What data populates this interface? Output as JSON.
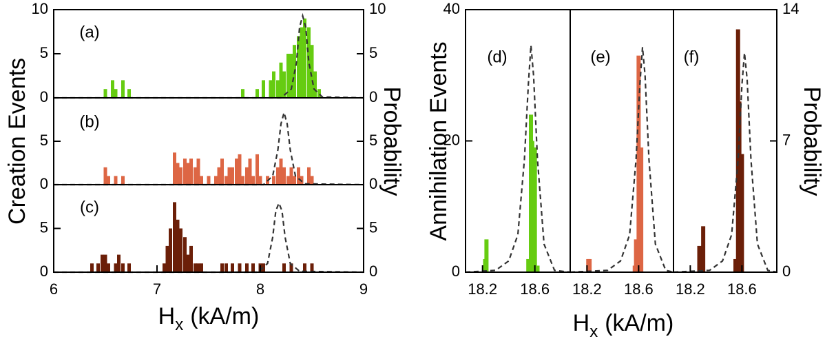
{
  "labels": {
    "creation_y": "Creation Events",
    "annihilation_y": "Annihilation Events",
    "probability": "Probability",
    "x_main": "H",
    "x_sub": "x",
    "x_unit": "(kA/m)"
  },
  "chart_data": [
    {
      "type": "bar",
      "panel": "(a)",
      "xlim": [
        6,
        9
      ],
      "ylim": [
        0,
        10
      ],
      "yticks": [
        0,
        5,
        10
      ],
      "y2lim": [
        0,
        10
      ],
      "y2ticks": [
        0,
        5,
        10
      ],
      "series": [
        {
          "color": "#66cc11",
          "x": [
            6.5,
            6.57,
            6.6,
            6.67,
            6.73,
            7.83,
            7.97,
            8.03,
            8.1,
            8.13,
            8.17,
            8.2,
            8.23,
            8.27,
            8.3,
            8.33,
            8.37,
            8.4,
            8.43,
            8.47,
            8.5,
            8.53,
            8.57
          ],
          "values": [
            1,
            2,
            1,
            2,
            1,
            1,
            1,
            2,
            2,
            3,
            2,
            4,
            3,
            5,
            5,
            6,
            7,
            8,
            9,
            8,
            6,
            3,
            1
          ]
        },
        {
          "type": "line",
          "axis": "y2",
          "color": "#333333",
          "dashed": true,
          "x": [
            6,
            8.2,
            8.3,
            8.35,
            8.38,
            8.41,
            8.44,
            8.47,
            8.52,
            8.6,
            9
          ],
          "values": [
            0,
            0,
            1,
            4,
            8,
            9.3,
            8,
            4,
            1,
            0.1,
            0
          ]
        }
      ]
    },
    {
      "type": "bar",
      "panel": "(b)",
      "xlim": [
        6,
        9
      ],
      "ylim": [
        0,
        10
      ],
      "yticks": [
        0,
        5
      ],
      "y2lim": [
        0,
        10
      ],
      "y2ticks": [
        0,
        5
      ],
      "series": [
        {
          "color": "#dd6644",
          "x": [
            6.5,
            6.53,
            6.6,
            6.67,
            7.17,
            7.2,
            7.23,
            7.27,
            7.3,
            7.33,
            7.37,
            7.4,
            7.43,
            7.5,
            7.57,
            7.6,
            7.63,
            7.67,
            7.7,
            7.73,
            7.77,
            7.8,
            7.83,
            7.87,
            7.9,
            7.93,
            7.97,
            8.0,
            8.07,
            8.13,
            8.17,
            8.2,
            8.23,
            8.27,
            8.3,
            8.33,
            8.37,
            8.4,
            8.47,
            8.5
          ],
          "values": [
            2,
            1,
            1,
            1,
            3.7,
            2.5,
            2,
            3,
            2.5,
            3,
            2,
            3,
            1,
            1,
            1,
            2,
            3,
            1,
            2,
            2,
            3,
            3.5,
            1,
            2,
            3,
            1,
            3.5,
            1,
            1,
            1,
            2,
            3,
            2,
            1,
            2,
            1,
            2,
            1,
            2,
            1
          ]
        },
        {
          "type": "line",
          "axis": "y2",
          "color": "#333333",
          "dashed": true,
          "x": [
            6,
            8.03,
            8.12,
            8.17,
            8.2,
            8.23,
            8.26,
            8.29,
            8.34,
            8.43,
            9
          ],
          "values": [
            0,
            0,
            1,
            4,
            7,
            8.3,
            7,
            4,
            1,
            0.1,
            0
          ]
        }
      ]
    },
    {
      "type": "bar",
      "panel": "(c)",
      "xlim": [
        6,
        9
      ],
      "ylim": [
        0,
        10
      ],
      "yticks": [
        0,
        5
      ],
      "y2lim": [
        0,
        10
      ],
      "y2ticks": [
        0,
        5
      ],
      "xticks": [
        6,
        7,
        8,
        9
      ],
      "series": [
        {
          "color": "#6b1f08",
          "x": [
            6.37,
            6.43,
            6.47,
            6.5,
            6.53,
            6.6,
            6.63,
            6.67,
            6.73,
            7.07,
            7.1,
            7.13,
            7.17,
            7.2,
            7.23,
            7.27,
            7.3,
            7.33,
            7.37,
            7.4,
            7.43,
            7.63,
            7.67,
            7.73,
            7.8,
            7.87,
            7.93,
            8.0,
            8.03,
            8.23,
            8.3,
            8.43,
            8.5
          ],
          "values": [
            1,
            1,
            2,
            2,
            1,
            1,
            2,
            1,
            1,
            1,
            3,
            5,
            8,
            6,
            5,
            4,
            2,
            3,
            1,
            1,
            1,
            1,
            1,
            1,
            1,
            1,
            1,
            1,
            1,
            1,
            1,
            1,
            1
          ]
        },
        {
          "type": "line",
          "axis": "y2",
          "color": "#333333",
          "dashed": true,
          "x": [
            6,
            7.98,
            8.07,
            8.12,
            8.15,
            8.18,
            8.21,
            8.24,
            8.29,
            8.38,
            9
          ],
          "values": [
            0,
            0,
            1,
            4,
            7,
            7.9,
            7,
            4,
            1,
            0.1,
            0
          ]
        }
      ]
    },
    {
      "type": "bar",
      "panel": "(d)",
      "xlim": [
        18.07,
        18.87
      ],
      "ylim": [
        0,
        40
      ],
      "yticks": [
        0,
        20,
        40
      ],
      "y2lim": [
        0,
        14
      ],
      "xticks": [
        18.2,
        18.6
      ],
      "series": [
        {
          "color": "#66cc11",
          "x": [
            18.22,
            18.23,
            18.55,
            18.57,
            18.58,
            18.6,
            18.62
          ],
          "values": [
            2,
            5,
            2,
            24,
            20,
            19,
            1
          ]
        },
        {
          "type": "line",
          "axis": "y2",
          "color": "#333333",
          "dashed": true,
          "x": [
            18.07,
            18.3,
            18.4,
            18.47,
            18.52,
            18.55,
            18.57,
            18.59,
            18.62,
            18.67,
            18.75,
            18.87
          ],
          "values": [
            0,
            0.1,
            0.6,
            2,
            6,
            10,
            12.1,
            10.5,
            6,
            1.5,
            0.1,
            0
          ]
        }
      ]
    },
    {
      "type": "bar",
      "panel": "(e)",
      "xlim": [
        18.07,
        18.87
      ],
      "ylim": [
        0,
        40
      ],
      "y2lim": [
        0,
        14
      ],
      "xticks": [
        18.2,
        18.6
      ],
      "series": [
        {
          "color": "#dd6644",
          "x": [
            18.21,
            18.22,
            18.57,
            18.58,
            18.6,
            18.62
          ],
          "values": [
            2,
            2,
            1,
            5,
            33,
            19
          ]
        },
        {
          "type": "line",
          "axis": "y2",
          "color": "#333333",
          "dashed": true,
          "x": [
            18.07,
            18.36,
            18.46,
            18.53,
            18.58,
            18.61,
            18.63,
            18.65,
            18.68,
            18.73,
            18.81,
            18.87
          ],
          "values": [
            0,
            0.1,
            0.6,
            2,
            6,
            10,
            12,
            10.5,
            6,
            1.5,
            0.1,
            0
          ]
        }
      ]
    },
    {
      "type": "bar",
      "panel": "(f)",
      "xlim": [
        18.07,
        18.87
      ],
      "ylim": [
        0,
        40
      ],
      "y2lim": [
        0,
        14
      ],
      "y2ticks": [
        0,
        7,
        14
      ],
      "xticks": [
        18.2,
        18.6
      ],
      "series": [
        {
          "color": "#6b1f08",
          "x": [
            18.27,
            18.3,
            18.55,
            18.57,
            18.58,
            18.6
          ],
          "values": [
            4,
            7,
            2,
            37,
            26,
            18
          ]
        },
        {
          "type": "line",
          "axis": "y2",
          "color": "#333333",
          "dashed": true,
          "x": [
            18.07,
            18.35,
            18.45,
            18.52,
            18.57,
            18.6,
            18.62,
            18.64,
            18.67,
            18.72,
            18.8,
            18.87
          ],
          "values": [
            0,
            0.1,
            0.6,
            2,
            6,
            10,
            11.7,
            10.3,
            6,
            1.5,
            0.1,
            0
          ]
        }
      ]
    }
  ]
}
